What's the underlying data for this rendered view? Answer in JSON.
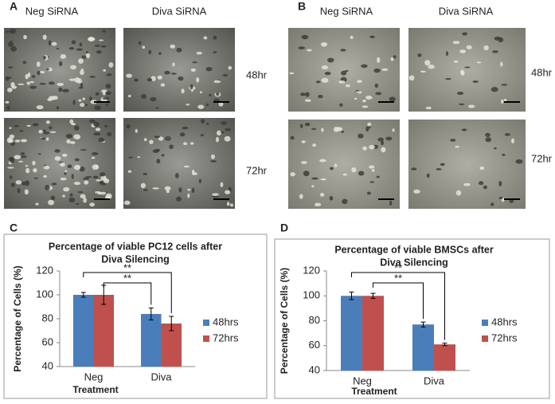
{
  "figure": {
    "panel_a": {
      "label": "A",
      "columns": [
        "Neg SiRNA",
        "Diva SiRNA"
      ],
      "rows": [
        "48hr",
        "72hr"
      ]
    },
    "panel_b": {
      "label": "B",
      "columns": [
        "Neg SiRNA",
        "Diva SiRNA"
      ],
      "rows": [
        "48hr",
        "72hr"
      ]
    },
    "panel_c": {
      "label": "C"
    },
    "panel_d": {
      "label": "D"
    }
  },
  "chart_data": [
    {
      "type": "bar",
      "title": [
        "Percentage of viable PC12 cells after",
        "Diva Silencing"
      ],
      "y_label": "Percentage of Cells (%)",
      "x_label": "Treatment",
      "categories": [
        "Neg",
        "Diva"
      ],
      "series": [
        {
          "name": "48hrs",
          "color": "#4a7ebb",
          "values": [
            100,
            84
          ],
          "errors": [
            2,
            5
          ]
        },
        {
          "name": "72hrs",
          "color": "#c0504d",
          "values": [
            100,
            76
          ],
          "errors": [
            8,
            6
          ]
        }
      ],
      "ylim": [
        40,
        120
      ],
      "yticks": [
        40,
        60,
        80,
        100,
        120
      ],
      "annotations": [
        "**",
        "**"
      ],
      "legend": "right"
    },
    {
      "type": "bar",
      "title": [
        "Percentage of viable BMSCs after",
        "Diva Silencing"
      ],
      "y_label": "Percentage of Cells (%)",
      "x_label": "Treatment",
      "categories": [
        "Neg",
        "Diva"
      ],
      "series": [
        {
          "name": "48hrs",
          "color": "#4a7ebb",
          "values": [
            100,
            77
          ],
          "errors": [
            3,
            2
          ]
        },
        {
          "name": "72hrs",
          "color": "#c0504d",
          "values": [
            100,
            61
          ],
          "errors": [
            2,
            1
          ]
        }
      ],
      "ylim": [
        40,
        120
      ],
      "yticks": [
        40,
        60,
        80,
        100,
        120
      ],
      "annotations": [
        "**",
        "**"
      ],
      "legend": "right"
    }
  ]
}
